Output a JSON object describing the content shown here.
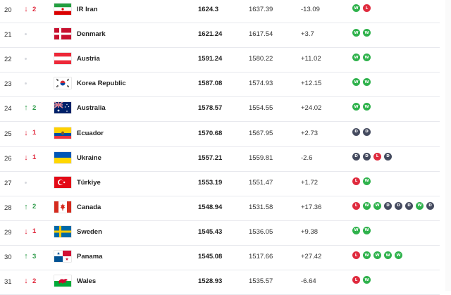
{
  "rows": [
    {
      "rank": "20",
      "move_dir": "down",
      "move_arrow": "↓",
      "move_num": "2",
      "flag_icon": "iran-flag-icon",
      "country": "IR Iran",
      "points": "1624.3",
      "previous": "1637.39",
      "change": "-13.09",
      "form": [
        "W",
        "L"
      ]
    },
    {
      "rank": "21",
      "move_dir": "none",
      "move_arrow": "",
      "move_num": "",
      "flag_icon": "denmark-flag-icon",
      "country": "Denmark",
      "points": "1621.24",
      "previous": "1617.54",
      "change": "+3.7",
      "form": [
        "W",
        "W"
      ]
    },
    {
      "rank": "22",
      "move_dir": "none",
      "move_arrow": "",
      "move_num": "",
      "flag_icon": "austria-flag-icon",
      "country": "Austria",
      "points": "1591.24",
      "previous": "1580.22",
      "change": "+11.02",
      "form": [
        "W",
        "W"
      ]
    },
    {
      "rank": "23",
      "move_dir": "none",
      "move_arrow": "",
      "move_num": "",
      "flag_icon": "korea-flag-icon",
      "country": "Korea Republic",
      "points": "1587.08",
      "previous": "1574.93",
      "change": "+12.15",
      "form": [
        "W",
        "W"
      ]
    },
    {
      "rank": "24",
      "move_dir": "up",
      "move_arrow": "↑",
      "move_num": "2",
      "flag_icon": "australia-flag-icon",
      "country": "Australia",
      "points": "1578.57",
      "previous": "1554.55",
      "change": "+24.02",
      "form": [
        "W",
        "W"
      ]
    },
    {
      "rank": "25",
      "move_dir": "down",
      "move_arrow": "↓",
      "move_num": "1",
      "flag_icon": "ecuador-flag-icon",
      "country": "Ecuador",
      "points": "1570.68",
      "previous": "1567.95",
      "change": "+2.73",
      "form": [
        "D",
        "D"
      ]
    },
    {
      "rank": "26",
      "move_dir": "down",
      "move_arrow": "↓",
      "move_num": "1",
      "flag_icon": "ukraine-flag-icon",
      "country": "Ukraine",
      "points": "1557.21",
      "previous": "1559.81",
      "change": "-2.6",
      "form": [
        "D",
        "D",
        "L",
        "D"
      ]
    },
    {
      "rank": "27",
      "move_dir": "none",
      "move_arrow": "",
      "move_num": "",
      "flag_icon": "turkiye-flag-icon",
      "country": "Türkiye",
      "points": "1553.19",
      "previous": "1551.47",
      "change": "+1.72",
      "form": [
        "L",
        "W"
      ]
    },
    {
      "rank": "28",
      "move_dir": "up",
      "move_arrow": "↑",
      "move_num": "2",
      "flag_icon": "canada-flag-icon",
      "country": "Canada",
      "points": "1548.94",
      "previous": "1531.58",
      "change": "+17.36",
      "form": [
        "L",
        "W",
        "W",
        "D",
        "D",
        "D",
        "W",
        "D"
      ]
    },
    {
      "rank": "29",
      "move_dir": "down",
      "move_arrow": "↓",
      "move_num": "1",
      "flag_icon": "sweden-flag-icon",
      "country": "Sweden",
      "points": "1545.43",
      "previous": "1536.05",
      "change": "+9.38",
      "form": [
        "W",
        "W"
      ]
    },
    {
      "rank": "30",
      "move_dir": "up",
      "move_arrow": "↑",
      "move_num": "3",
      "flag_icon": "panama-flag-icon",
      "country": "Panama",
      "points": "1545.08",
      "previous": "1517.66",
      "change": "+27.42",
      "form": [
        "L",
        "W",
        "W",
        "W",
        "W"
      ]
    },
    {
      "rank": "31",
      "move_dir": "down",
      "move_arrow": "↓",
      "move_num": "2",
      "flag_icon": "wales-flag-icon",
      "country": "Wales",
      "points": "1528.93",
      "previous": "1535.57",
      "change": "-6.64",
      "form": [
        "L",
        "W"
      ]
    }
  ],
  "colors": {
    "win": "#2fb24c",
    "loss": "#df2b3e",
    "draw": "#454b5f",
    "up": "#2e9c4a",
    "down": "#e0283c"
  }
}
